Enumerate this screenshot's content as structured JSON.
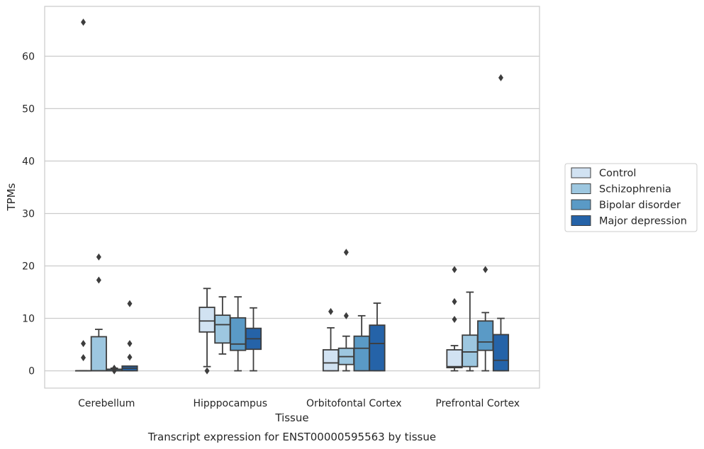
{
  "chart_data": {
    "type": "boxplot",
    "title": "Transcript expression for ENST00000595563 by tissue",
    "xlabel": "Tissue",
    "ylabel": "TPMs",
    "categories": [
      "Cerebellum",
      "Hipppocampus",
      "Orbitofontal Cortex",
      "Prefrontal Cortex"
    ],
    "y_ticks": [
      0,
      10,
      20,
      30,
      40,
      50,
      60
    ],
    "ylim": [
      -3.3,
      69.5
    ],
    "grid": "horizontal",
    "legend_position": "right",
    "series": [
      {
        "name": "Control",
        "color": "#d1e2f2",
        "boxes": [
          {
            "q1": 0,
            "median": 0,
            "q3": 0,
            "whisker_low": 0,
            "whisker_high": 0,
            "outliers": [
              2.5,
              5.2,
              66.5
            ]
          },
          {
            "q1": 7.4,
            "median": 9.5,
            "q3": 12.1,
            "whisker_low": 0.8,
            "whisker_high": 15.7,
            "outliers": [
              0
            ]
          },
          {
            "q1": 0,
            "median": 1.5,
            "q3": 4.0,
            "whisker_low": 0,
            "whisker_high": 8.2,
            "outliers": [
              11.3
            ]
          },
          {
            "q1": 0.6,
            "median": 0.8,
            "q3": 4.0,
            "whisker_low": 0,
            "whisker_high": 4.8,
            "outliers": [
              9.8,
              13.2,
              19.3
            ]
          }
        ]
      },
      {
        "name": "Schizophrenia",
        "color": "#9dc7e0",
        "boxes": [
          {
            "q1": 0,
            "median": 0,
            "q3": 6.5,
            "whisker_low": 0,
            "whisker_high": 7.9,
            "outliers": [
              17.3,
              21.7
            ]
          },
          {
            "q1": 5.3,
            "median": 8.8,
            "q3": 10.6,
            "whisker_low": 3.2,
            "whisker_high": 14.1,
            "outliers": []
          },
          {
            "q1": 1.2,
            "median": 2.7,
            "q3": 4.3,
            "whisker_low": 0,
            "whisker_high": 6.6,
            "outliers": [
              10.5,
              22.6
            ]
          },
          {
            "q1": 0.8,
            "median": 3.6,
            "q3": 6.8,
            "whisker_low": 0,
            "whisker_high": 15.0,
            "outliers": []
          }
        ]
      },
      {
        "name": "Bipolar disorder",
        "color": "#5a9ac6",
        "boxes": [
          {
            "q1": 0,
            "median": 0,
            "q3": 0.3,
            "whisker_low": 0,
            "whisker_high": 0.5,
            "outliers": [
              0,
              0.5
            ]
          },
          {
            "q1": 3.9,
            "median": 5.1,
            "q3": 10.1,
            "whisker_low": 0,
            "whisker_high": 14.1,
            "outliers": []
          },
          {
            "q1": 0,
            "median": 4.3,
            "q3": 6.6,
            "whisker_low": 0,
            "whisker_high": 10.5,
            "outliers": []
          },
          {
            "q1": 3.9,
            "median": 5.5,
            "q3": 9.5,
            "whisker_low": 0,
            "whisker_high": 11.1,
            "outliers": [
              19.3
            ]
          }
        ]
      },
      {
        "name": "Major depression",
        "color": "#2563a8",
        "boxes": [
          {
            "q1": 0,
            "median": 0.5,
            "q3": 0.9,
            "whisker_low": 0,
            "whisker_high": 0.9,
            "outliers": [
              2.6,
              5.2,
              12.8
            ]
          },
          {
            "q1": 4.1,
            "median": 6.1,
            "q3": 8.1,
            "whisker_low": 0,
            "whisker_high": 12.0,
            "outliers": []
          },
          {
            "q1": 0,
            "median": 5.2,
            "q3": 8.7,
            "whisker_low": 0,
            "whisker_high": 12.9,
            "outliers": []
          },
          {
            "q1": 0,
            "median": 2.0,
            "q3": 6.9,
            "whisker_low": 0,
            "whisker_high": 10.0,
            "outliers": [
              55.9
            ]
          }
        ]
      }
    ]
  }
}
